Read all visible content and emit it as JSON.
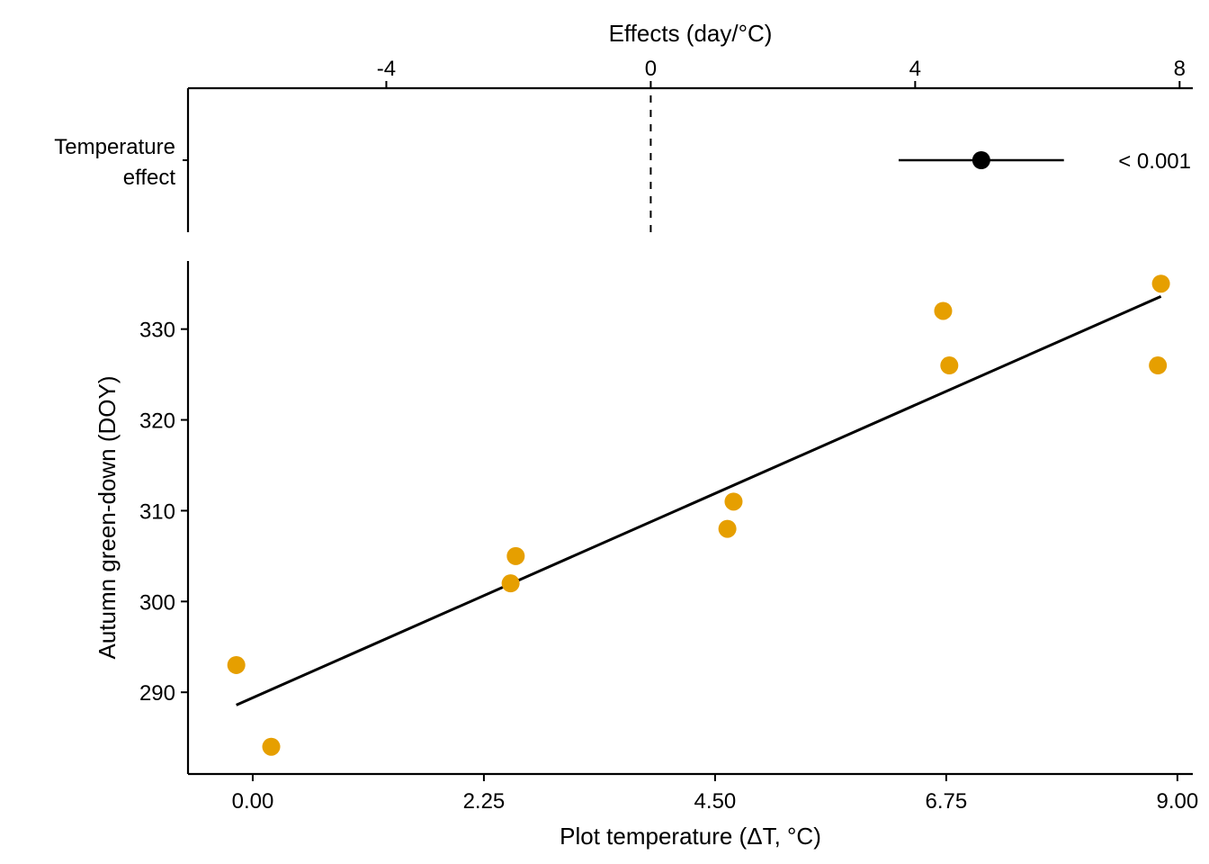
{
  "chart_data": [
    {
      "panel": "top",
      "type": "forest",
      "title": "",
      "xlabel": "Effects (day/°C)",
      "xlabel_position": "top",
      "xlim": [
        -7,
        8.2
      ],
      "xticks": [
        -4,
        0,
        4,
        8
      ],
      "xtick_labels": [
        "-4",
        "0",
        "4",
        "8"
      ],
      "reference_line": {
        "x": 0,
        "style": "dashed"
      },
      "rows": [
        {
          "label_lines": [
            "Temperature",
            "effect"
          ],
          "estimate": 5.0,
          "ci_low": 3.75,
          "ci_high": 6.25,
          "p_label": "< 0.001"
        }
      ],
      "grid": false
    },
    {
      "panel": "bottom",
      "type": "scatter",
      "title": "",
      "xlabel": "Plot temperature (ΔT, °C)",
      "ylabel": "Autumn green-down (DOY)",
      "xlim": [
        -0.63,
        9.15
      ],
      "ylim": [
        281,
        337.5
      ],
      "xticks": [
        0,
        2.25,
        4.5,
        6.75,
        9.0
      ],
      "xtick_labels": [
        "0.00",
        "2.25",
        "4.50",
        "6.75",
        "9.00"
      ],
      "yticks": [
        290,
        300,
        310,
        320,
        330
      ],
      "ytick_labels": [
        "290",
        "300",
        "310",
        "320",
        "330"
      ],
      "point_color": "#E69F00",
      "line_color": "#000000",
      "points": [
        {
          "x": -0.16,
          "y": 293
        },
        {
          "x": 0.18,
          "y": 284
        },
        {
          "x": 2.51,
          "y": 302
        },
        {
          "x": 2.56,
          "y": 305
        },
        {
          "x": 4.62,
          "y": 308
        },
        {
          "x": 4.68,
          "y": 311
        },
        {
          "x": 6.72,
          "y": 332
        },
        {
          "x": 6.78,
          "y": 326
        },
        {
          "x": 8.81,
          "y": 326
        },
        {
          "x": 8.84,
          "y": 335
        }
      ],
      "fit_line": {
        "x": [
          -0.16,
          8.84
        ],
        "y": [
          288.6,
          333.6
        ]
      },
      "grid": false
    }
  ]
}
